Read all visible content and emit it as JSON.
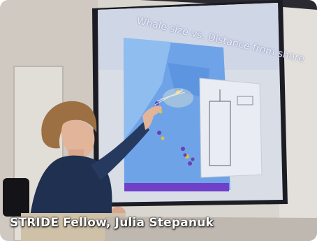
{
  "photo": {
    "caption": "STRIDE Fellow, Julia Stepanuk",
    "slide_title": "Whale size vs. Distance from shore"
  },
  "colors": {
    "wall": "#dcd8d2",
    "screen": "#d9dde6",
    "projected_blue": "#6ea3e8",
    "jacket": "#203050",
    "hair": "#9c7042"
  }
}
